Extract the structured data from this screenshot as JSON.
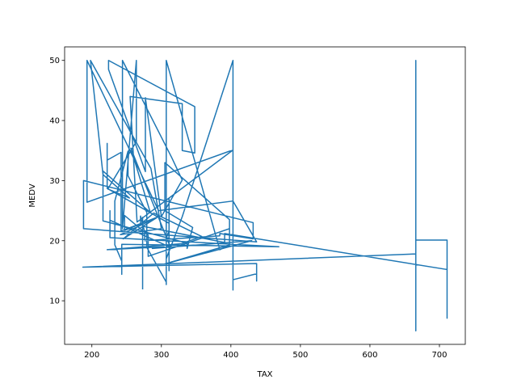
{
  "chart_data": {
    "type": "line",
    "xlabel": "TAX",
    "ylabel": "MEDV",
    "color": "#1f77b4",
    "x": [
      296,
      242,
      242,
      222,
      222,
      222,
      311,
      311,
      311,
      311,
      311,
      311,
      307,
      307,
      307,
      307,
      307,
      307,
      307,
      307,
      307,
      307,
      307,
      279,
      279,
      279,
      252,
      252,
      233,
      233,
      233,
      243,
      243,
      243,
      469,
      226,
      226,
      226,
      313,
      256,
      284,
      216,
      216,
      337,
      337,
      345,
      305,
      305,
      398,
      398,
      398,
      281,
      281,
      247,
      247,
      270,
      270,
      276,
      276,
      384,
      384,
      432,
      432,
      188,
      188,
      437,
      403,
      296,
      193,
      193,
      193,
      398,
      402,
      265,
      255,
      330,
      330,
      348,
      348,
      224,
      224,
      277,
      277,
      300,
      330,
      315,
      244,
      244,
      264,
      264,
      223,
      254,
      216,
      198,
      285,
      300,
      241,
      293,
      245,
      289,
      358,
      329,
      222,
      304,
      287,
      430,
      304,
      398,
      384,
      307,
      307,
      330,
      403,
      403,
      403,
      403,
      437,
      437,
      437,
      187,
      666,
      666,
      666,
      666,
      666,
      666,
      666,
      666,
      666,
      711,
      711,
      711,
      711,
      711,
      391,
      391,
      273,
      273,
      273,
      273,
      273
    ],
    "values": [
      24,
      21.6,
      34.7,
      33.4,
      36.2,
      28.7,
      22.9,
      27.1,
      16.5,
      18.9,
      15,
      21.7,
      20.4,
      18.2,
      23.1,
      17.5,
      13.6,
      19.6,
      15.2,
      21,
      12.7,
      14.5,
      13.1,
      18.9,
      21,
      24.7,
      30.8,
      34.9,
      26.6,
      24.7,
      19.3,
      16.6,
      14.4,
      19.4,
      19,
      20.5,
      25,
      23.4,
      18.9,
      35.4,
      24.7,
      31.6,
      23.3,
      19.6,
      18.7,
      22.2,
      25,
      33,
      23.5,
      19.4,
      22,
      17.4,
      20.9,
      24.2,
      21.7,
      22.8,
      24.1,
      21.4,
      20,
      20.8,
      21.2,
      20.3,
      23,
      30,
      22,
      19.8,
      26.6,
      25,
      50,
      37.2,
      26.4,
      34.9,
      35,
      23.1,
      44,
      42.8,
      35,
      34.6,
      42.3,
      50,
      48.5,
      31.5,
      43.8,
      24,
      30.1,
      33.8,
      50,
      22,
      50,
      36.5,
      28.6,
      27.1,
      31,
      50,
      32,
      22,
      21,
      23.8,
      20.3,
      24.6,
      20.7,
      19.5,
      18.5,
      19,
      18.7,
      20,
      16.1,
      19.3,
      18.5,
      50,
      17,
      24,
      50,
      11.8,
      20,
      13.5,
      14.5,
      13.3,
      16.2,
      15.6,
      17.8,
      50,
      5,
      27.9,
      7,
      50,
      13.1,
      5.6,
      20.1,
      20.1,
      15.2,
      7.1,
      7.5,
      15.2,
      21.2,
      19.7,
      22.4,
      20.6,
      23.9,
      22,
      11.9
    ],
    "xlim": [
      160.8,
      737.2
    ],
    "ylim": [
      2.75,
      52.25
    ],
    "xticks": [
      200,
      300,
      400,
      500,
      600,
      700
    ],
    "yticks": [
      10,
      20,
      30,
      40,
      50
    ],
    "grid": false
  }
}
